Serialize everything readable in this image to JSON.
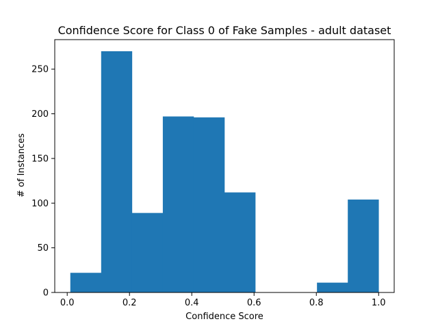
{
  "chart_data": {
    "type": "bar",
    "title": "Confidence Score for Class 0 of Fake Samples - adult dataset",
    "xlabel": "Confidence Score",
    "ylabel": "# of Instances",
    "xlim": [
      -0.04,
      1.05
    ],
    "ylim": [
      0,
      283
    ],
    "xticks": [
      0.0,
      0.2,
      0.4,
      0.6,
      0.8,
      1.0
    ],
    "xtick_labels": [
      "0.0",
      "0.2",
      "0.4",
      "0.6",
      "0.8",
      "1.0"
    ],
    "yticks": [
      0,
      50,
      100,
      150,
      200,
      250
    ],
    "ytick_labels": [
      "0",
      "50",
      "100",
      "150",
      "200",
      "250"
    ],
    "grid": false,
    "bar_color": "#1f77b4",
    "bins": [
      {
        "x0": 0.01,
        "x1": 0.109,
        "count": 22
      },
      {
        "x0": 0.109,
        "x1": 0.208,
        "count": 270
      },
      {
        "x0": 0.208,
        "x1": 0.307,
        "count": 89
      },
      {
        "x0": 0.307,
        "x1": 0.406,
        "count": 197
      },
      {
        "x0": 0.406,
        "x1": 0.505,
        "count": 196
      },
      {
        "x0": 0.505,
        "x1": 0.604,
        "count": 112
      },
      {
        "x0": 0.604,
        "x1": 0.703,
        "count": 0
      },
      {
        "x0": 0.703,
        "x1": 0.802,
        "count": 0
      },
      {
        "x0": 0.802,
        "x1": 0.901,
        "count": 11
      },
      {
        "x0": 0.901,
        "x1": 1.0,
        "count": 104
      }
    ]
  }
}
